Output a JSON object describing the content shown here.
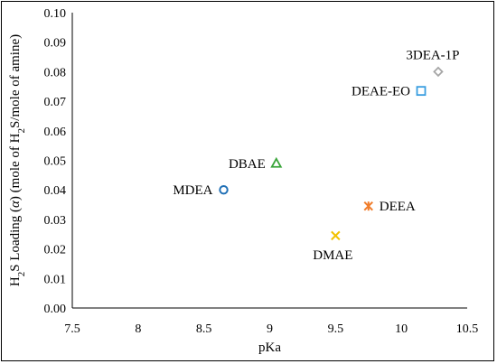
{
  "chart_data": {
    "type": "scatter",
    "xlabel": "pKa",
    "ylabel": {
      "prefix": "H",
      "sub1": "2",
      "mid1": "S Loading (",
      "alpha": "α",
      "mid2": ") (mole of H",
      "sub2": "2",
      "suffix": "S/mole of amine)"
    },
    "xlim": [
      7.5,
      10.5
    ],
    "ylim": [
      0,
      0.1
    ],
    "x_ticks": [
      "7.5",
      "8",
      "8.5",
      "9",
      "9.5",
      "10",
      "10.5"
    ],
    "y_ticks": [
      "0.00",
      "0.01",
      "0.02",
      "0.03",
      "0.04",
      "0.05",
      "0.06",
      "0.07",
      "0.08",
      "0.09",
      "0.10"
    ],
    "grid": false,
    "points": [
      {
        "label": "MDEA",
        "x": 8.65,
        "y": 0.04,
        "marker": "circle",
        "color": "#1f6fb5",
        "label_pos": "left"
      },
      {
        "label": "DBAE",
        "x": 9.05,
        "y": 0.049,
        "marker": "triangle",
        "color": "#3aa53a",
        "label_pos": "left"
      },
      {
        "label": "DMAE",
        "x": 9.5,
        "y": 0.0245,
        "marker": "x",
        "color": "#f2c200",
        "label_pos": "below"
      },
      {
        "label": "DEEA",
        "x": 9.75,
        "y": 0.0345,
        "marker": "asterisk",
        "color": "#f07c2b",
        "label_pos": "right"
      },
      {
        "label": "DEAE-EO",
        "x": 10.15,
        "y": 0.0735,
        "marker": "square",
        "color": "#3a9ee0",
        "label_pos": "left"
      },
      {
        "label": "3DEA-1P",
        "x": 10.28,
        "y": 0.08,
        "marker": "diamond",
        "color": "#a6a6a6",
        "label_pos": "above-left"
      }
    ]
  }
}
